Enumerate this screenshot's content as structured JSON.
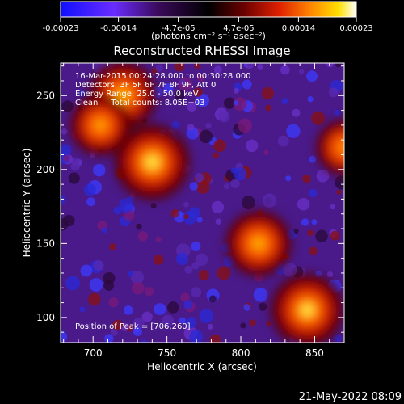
{
  "chart_data": {
    "type": "heatmap",
    "title": "Reconstructed RHESSI Image",
    "xlabel": "Heliocentric X (arcsec)",
    "ylabel": "Heliocentric Y (arcsec)",
    "xlim": [
      678,
      870
    ],
    "ylim": [
      83,
      272
    ],
    "x_ticks": [
      700,
      750,
      800,
      850
    ],
    "y_ticks": [
      100,
      150,
      200,
      250
    ],
    "colorbar": {
      "min": -0.00023,
      "max": 0.00023,
      "ticks": [
        -0.00023,
        -0.00014,
        -4.7e-05,
        4.7e-05,
        0.00014,
        0.00023
      ],
      "tick_labels": [
        "-0.00023",
        "-0.00014",
        "-4.7e-05",
        "4.7e-05",
        "0.00014",
        "0.00023"
      ],
      "unit_label": "(photons cm⁻² s⁻¹ asec⁻²)",
      "colormap": "rainbow-black-red-yellow-white"
    },
    "annotations": [
      "16-Mar-2015 00:24:28.000 to 00:30:28.000",
      "Detectors: 3F 5F 6F 7F 8F 9F, Att 0",
      "Energy Range: 25.0 - 50.0 keV",
      "Clean     Total counts: 8.05E+03"
    ],
    "peak_label": "Position of Peak = [706,260]",
    "bright_regions": [
      {
        "x": 720,
        "y": 250,
        "level": 0.75
      },
      {
        "x": 740,
        "y": 205,
        "level": 0.9
      },
      {
        "x": 705,
        "y": 230,
        "level": 0.6
      },
      {
        "x": 812,
        "y": 150,
        "level": 0.7
      },
      {
        "x": 845,
        "y": 105,
        "level": 0.85
      },
      {
        "x": 870,
        "y": 215,
        "level": 0.5
      }
    ]
  },
  "footer": {
    "timestamp": "21-May-2022 08:09"
  }
}
